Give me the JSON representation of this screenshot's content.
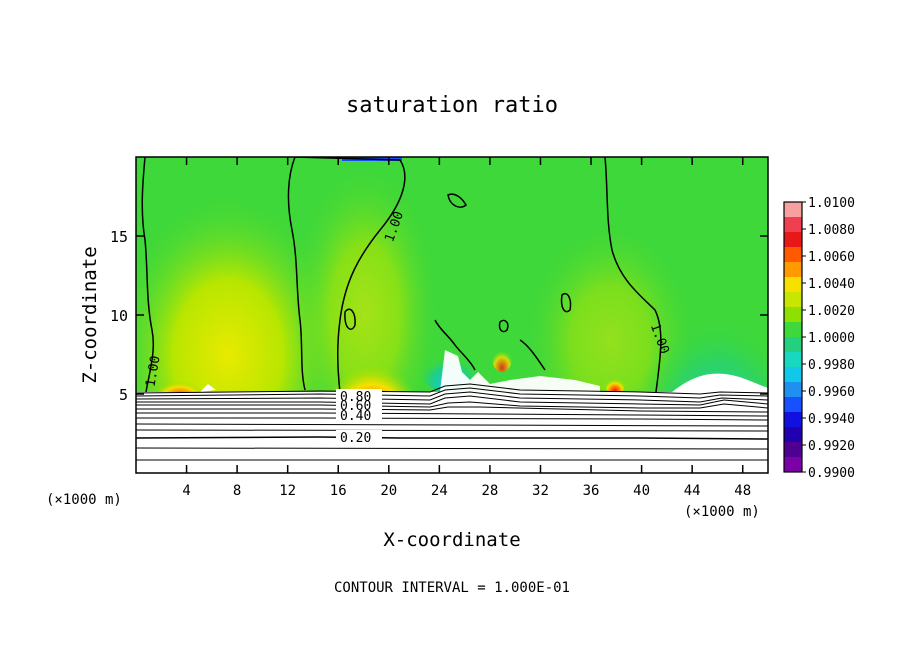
{
  "chart_data": {
    "type": "heatmap",
    "title": "saturation ratio",
    "xlabel": "X-coordinate",
    "ylabel": "Z-coordinate",
    "x_unit": "(×1000 m)",
    "x_unit_right": "(×1000 m)",
    "xlim": [
      0,
      50
    ],
    "ylim": [
      0,
      20
    ],
    "x_ticks": [
      4,
      8,
      12,
      16,
      20,
      24,
      28,
      32,
      36,
      40,
      44,
      48
    ],
    "y_ticks": [
      5,
      10,
      15
    ],
    "footer": "CONTOUR INTERVAL = 1.000E-01",
    "colorbar": {
      "ticks": [
        "1.0100",
        "1.0080",
        "1.0060",
        "1.0040",
        "1.0020",
        "1.0000",
        "0.9980",
        "0.9960",
        "0.9940",
        "0.9920",
        "0.9900"
      ],
      "colors": [
        "#f7a0a0",
        "#f04050",
        "#e81818",
        "#ff5a00",
        "#ff9a00",
        "#f5e000",
        "#c8e600",
        "#8ee000",
        "#3ed83a",
        "#22d080",
        "#18d8c0",
        "#10c8e8",
        "#2090f0",
        "#1850ff",
        "#1010e0",
        "#2000b0",
        "#500090",
        "#7a00a8"
      ]
    },
    "contour_labels": [
      "1.00",
      "1.00",
      "1.00",
      "0.80",
      "0.60",
      "0.40",
      "0.20"
    ]
  }
}
